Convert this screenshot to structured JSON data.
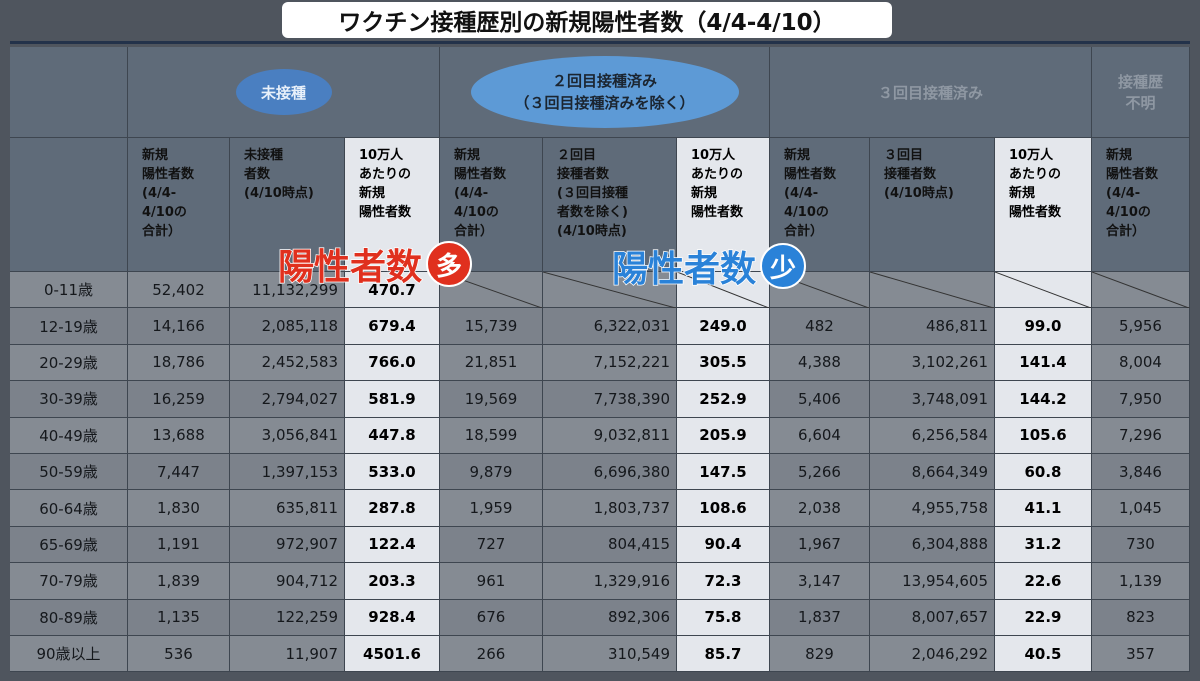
{
  "title": "ワクチン接種歴別の新規陽性者数（4/4-4/10）",
  "groups": [
    "未接種",
    "２回目接種済み\n（３回目接種済みを除く）",
    "３回目接種済み",
    "接種歴\n不明"
  ],
  "table": {
    "headers": [
      "新規\n陽性者数\n(4/4-\n4/10の\n合計）",
      "未接種\n者数\n(4/10時点)",
      "10万人\nあたりの\n新規\n陽性者数",
      "新規\n陽性者数\n(4/4-\n4/10の\n合計）",
      "２回目\n接種者数\n(３回目接種\n者数を除く)\n(4/10時点)",
      "10万人\nあたりの\n新規\n陽性者数",
      "新規\n陽性者数\n(4/4-\n4/10の\n合計）",
      "３回目\n接種者数\n(4/10時点)",
      "10万人\nあたりの\n新規\n陽性者数",
      "新規\n陽性者数\n(4/4-\n4/10の\n合計）"
    ],
    "rows": [
      [
        "0-11歳",
        "52,402",
        "11,132,299",
        "470.7"
      ],
      [
        "12-19歳",
        "14,166",
        "2,085,118",
        "679.4",
        "15,739",
        "6,322,031",
        "249.0",
        "482",
        "486,811",
        "99.0",
        "5,956"
      ],
      [
        "20-29歳",
        "18,786",
        "2,452,583",
        "766.0",
        "21,851",
        "7,152,221",
        "305.5",
        "4,388",
        "3,102,261",
        "141.4",
        "8,004"
      ],
      [
        "30-39歳",
        "16,259",
        "2,794,027",
        "581.9",
        "19,569",
        "7,738,390",
        "252.9",
        "5,406",
        "3,748,091",
        "144.2",
        "7,950"
      ],
      [
        "40-49歳",
        "13,688",
        "3,056,841",
        "447.8",
        "18,599",
        "9,032,811",
        "205.9",
        "6,604",
        "6,256,584",
        "105.6",
        "7,296"
      ],
      [
        "50-59歳",
        "7,447",
        "1,397,153",
        "533.0",
        "9,879",
        "6,696,380",
        "147.5",
        "5,266",
        "8,664,349",
        "60.8",
        "3,846"
      ],
      [
        "60-64歳",
        "1,830",
        "635,811",
        "287.8",
        "1,959",
        "1,803,737",
        "108.6",
        "2,038",
        "4,955,758",
        "41.1",
        "1,045"
      ],
      [
        "65-69歳",
        "1,191",
        "972,907",
        "122.4",
        "727",
        "804,415",
        "90.4",
        "1,967",
        "6,304,888",
        "31.2",
        "730"
      ],
      [
        "70-79歳",
        "1,839",
        "904,712",
        "203.3",
        "961",
        "1,329,916",
        "72.3",
        "3,147",
        "13,954,605",
        "22.6",
        "1,139"
      ],
      [
        "80-89歳",
        "1,135",
        "122,259",
        "928.4",
        "676",
        "892,306",
        "75.8",
        "1,837",
        "8,007,657",
        "22.9",
        "823"
      ],
      [
        "90歳以上",
        "536",
        "11,907",
        "4501.6",
        "266",
        "310,549",
        "85.7",
        "829",
        "2,046,292",
        "40.5",
        "357"
      ]
    ]
  },
  "callouts": [
    {
      "text": "陽性者数",
      "mark": "多"
    },
    {
      "text": "陽性者数",
      "mark": "少"
    }
  ]
}
